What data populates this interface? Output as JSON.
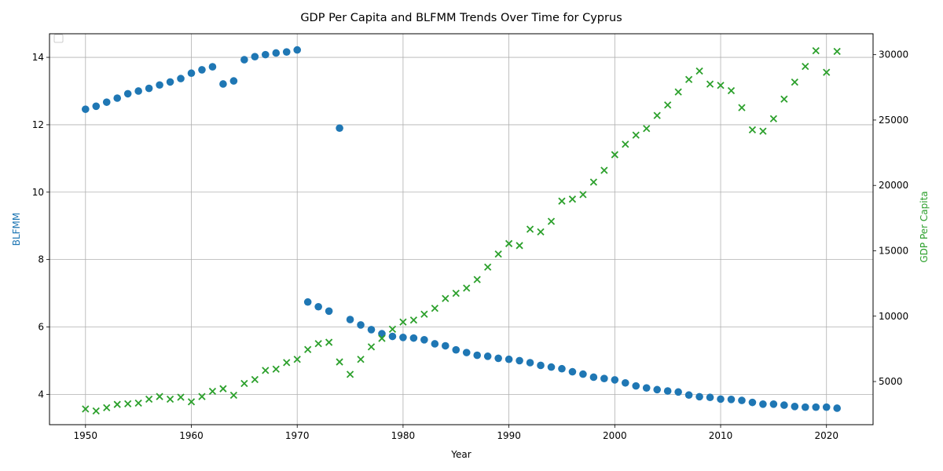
{
  "chart_data": {
    "type": "scatter",
    "title": "GDP Per Capita and BLFMM Trends Over Time for Cyprus",
    "xlabel": "Year",
    "ylabel_left": "BLFMM",
    "ylabel_right": "GDP Per Capita",
    "x_range": [
      1946.6,
      2024.4
    ],
    "y_left_range": [
      3.1,
      14.7
    ],
    "y_right_range": [
      1700,
      31600
    ],
    "x_ticks": [
      1950,
      1960,
      1970,
      1980,
      1990,
      2000,
      2010,
      2020
    ],
    "y_left_ticks": [
      4,
      6,
      8,
      10,
      12,
      14
    ],
    "y_right_ticks": [
      5000,
      10000,
      15000,
      20000,
      25000,
      30000
    ],
    "grid": true,
    "legend": "upper-left (empty)",
    "colors": {
      "left": "#1f77b4",
      "right": "#2ca02c"
    },
    "series": [
      {
        "name": "BLFMM",
        "axis": "left",
        "marker": "circle",
        "x": [
          1950,
          1951,
          1952,
          1953,
          1954,
          1955,
          1956,
          1957,
          1958,
          1959,
          1960,
          1961,
          1962,
          1963,
          1964,
          1965,
          1966,
          1967,
          1968,
          1969,
          1970,
          1971,
          1972,
          1973,
          1974,
          1975,
          1976,
          1977,
          1978,
          1979,
          1980,
          1981,
          1982,
          1983,
          1984,
          1985,
          1986,
          1987,
          1988,
          1989,
          1990,
          1991,
          1992,
          1993,
          1994,
          1995,
          1996,
          1997,
          1998,
          1999,
          2000,
          2001,
          2002,
          2003,
          2004,
          2005,
          2006,
          2007,
          2008,
          2009,
          2010,
          2011,
          2012,
          2013,
          2014,
          2015,
          2016,
          2017,
          2018,
          2019,
          2020,
          2021
        ],
        "y": [
          12.46,
          12.55,
          12.67,
          12.79,
          12.92,
          13.0,
          13.08,
          13.18,
          13.27,
          13.37,
          13.53,
          13.63,
          13.72,
          13.21,
          13.3,
          13.93,
          14.02,
          14.08,
          14.13,
          14.16,
          14.22,
          6.74,
          6.6,
          6.47,
          11.9,
          6.22,
          6.06,
          5.92,
          5.8,
          5.72,
          5.69,
          5.67,
          5.62,
          5.5,
          5.44,
          5.32,
          5.24,
          5.16,
          5.13,
          5.07,
          5.04,
          5.0,
          4.94,
          4.86,
          4.81,
          4.76,
          4.67,
          4.6,
          4.51,
          4.47,
          4.43,
          4.34,
          4.25,
          4.19,
          4.14,
          4.1,
          4.07,
          3.98,
          3.93,
          3.91,
          3.86,
          3.85,
          3.82,
          3.76,
          3.71,
          3.71,
          3.68,
          3.64,
          3.62,
          3.62,
          3.62,
          3.59
        ]
      },
      {
        "name": "GDP Per Capita",
        "axis": "right",
        "marker": "x",
        "x": [
          1950,
          1951,
          1952,
          1953,
          1954,
          1955,
          1956,
          1957,
          1958,
          1959,
          1960,
          1961,
          1962,
          1963,
          1964,
          1965,
          1966,
          1967,
          1968,
          1969,
          1970,
          1971,
          1972,
          1973,
          1974,
          1975,
          1976,
          1977,
          1978,
          1979,
          1980,
          1981,
          1982,
          1983,
          1984,
          1985,
          1986,
          1987,
          1988,
          1989,
          1990,
          1991,
          1992,
          1993,
          1994,
          1995,
          1996,
          1997,
          1998,
          1999,
          2000,
          2001,
          2002,
          2003,
          2004,
          2005,
          2006,
          2007,
          2008,
          2009,
          2010,
          2011,
          2012,
          2013,
          2014,
          2015,
          2016,
          2017,
          2018,
          2019,
          2020,
          2021
        ],
        "y": [
          2900,
          2750,
          3000,
          3250,
          3300,
          3350,
          3650,
          3850,
          3650,
          3800,
          3450,
          3850,
          4250,
          4450,
          3950,
          4850,
          5150,
          5850,
          5950,
          6450,
          6700,
          7450,
          7900,
          8000,
          6500,
          5550,
          6700,
          7650,
          8300,
          9000,
          9550,
          9700,
          10150,
          10600,
          11350,
          11750,
          12150,
          12800,
          13750,
          14750,
          15550,
          15400,
          16650,
          16450,
          17250,
          18800,
          18950,
          19300,
          20250,
          21150,
          22350,
          23150,
          23850,
          24350,
          25350,
          26150,
          27150,
          28100,
          28750,
          27750,
          27650,
          27250,
          25950,
          24250,
          24150,
          25100,
          26600,
          27900,
          29100,
          30300,
          28650,
          30250
        ]
      }
    ]
  }
}
